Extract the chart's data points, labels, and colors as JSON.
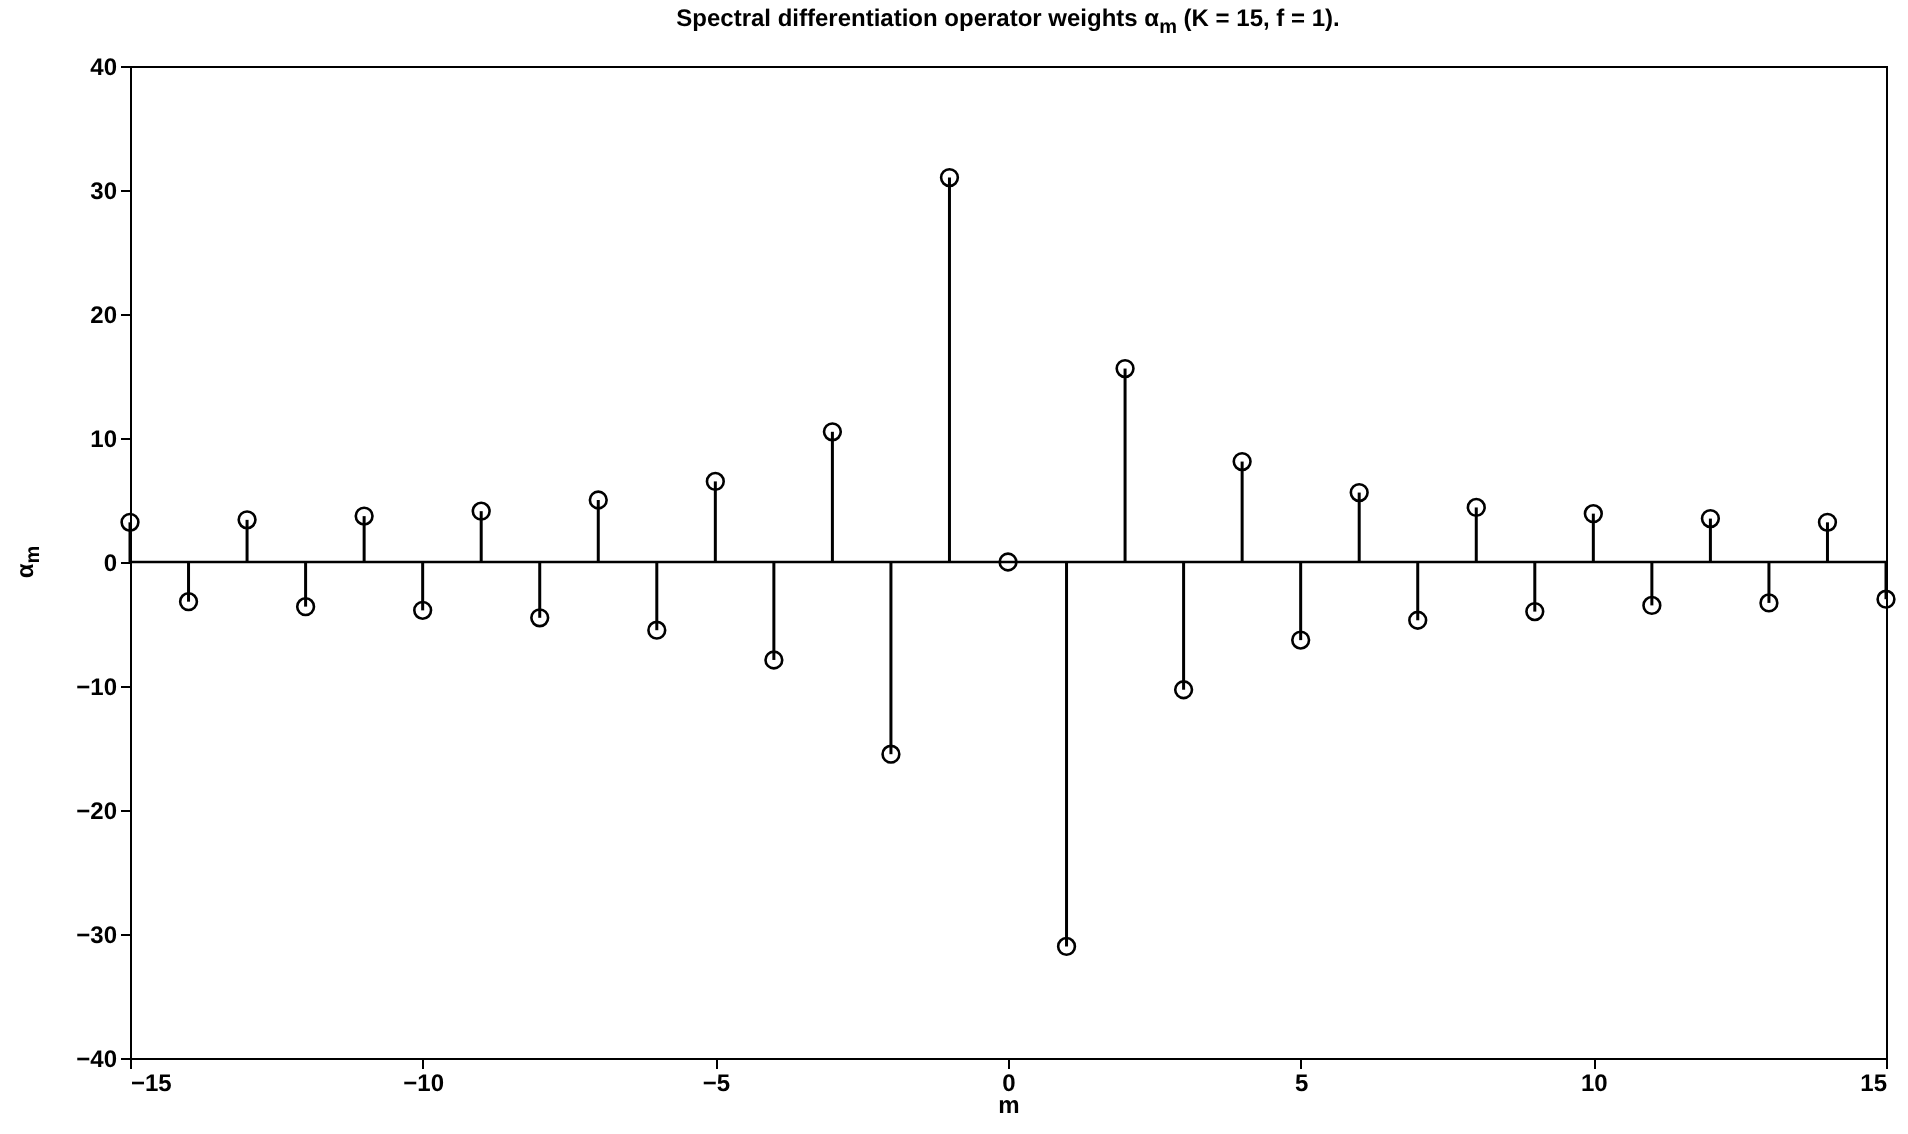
{
  "chart_data": {
    "type": "lollipop",
    "title": "Spectral differentiation operator weights α$_{m}$ (K = 15, f = 1).",
    "xlabel": "m",
    "ylabel": "α$_{m}$",
    "x": [
      -15,
      -14,
      -13,
      -12,
      -11,
      -10,
      -9,
      -8,
      -7,
      -6,
      -5,
      -4,
      -3,
      -2,
      -1,
      0,
      1,
      2,
      3,
      4,
      5,
      6,
      7,
      8,
      9,
      10,
      11,
      12,
      13,
      14,
      15
    ],
    "series": [
      {
        "color": "#000000",
        "values": [
          3.2,
          -3.2,
          3.4,
          -3.6,
          3.7,
          -3.9,
          4.1,
          -4.5,
          5.0,
          -5.5,
          6.5,
          -7.9,
          10.5,
          -15.5,
          31.0,
          0,
          -31.0,
          15.6,
          -10.3,
          8.1,
          -6.3,
          5.6,
          -4.7,
          4.4,
          -4.0,
          3.9,
          -3.5,
          3.5,
          -3.3,
          3.2,
          -3.0
        ]
      }
    ],
    "xlim": [
      -15,
      15
    ],
    "ylim": [
      -40,
      40
    ],
    "xticks": [
      -15,
      -10,
      -5,
      0,
      5,
      10,
      15
    ],
    "yticks": [
      -40,
      -30,
      -20,
      -10,
      0,
      10,
      20,
      30,
      40
    ],
    "marker": "circle"
  }
}
